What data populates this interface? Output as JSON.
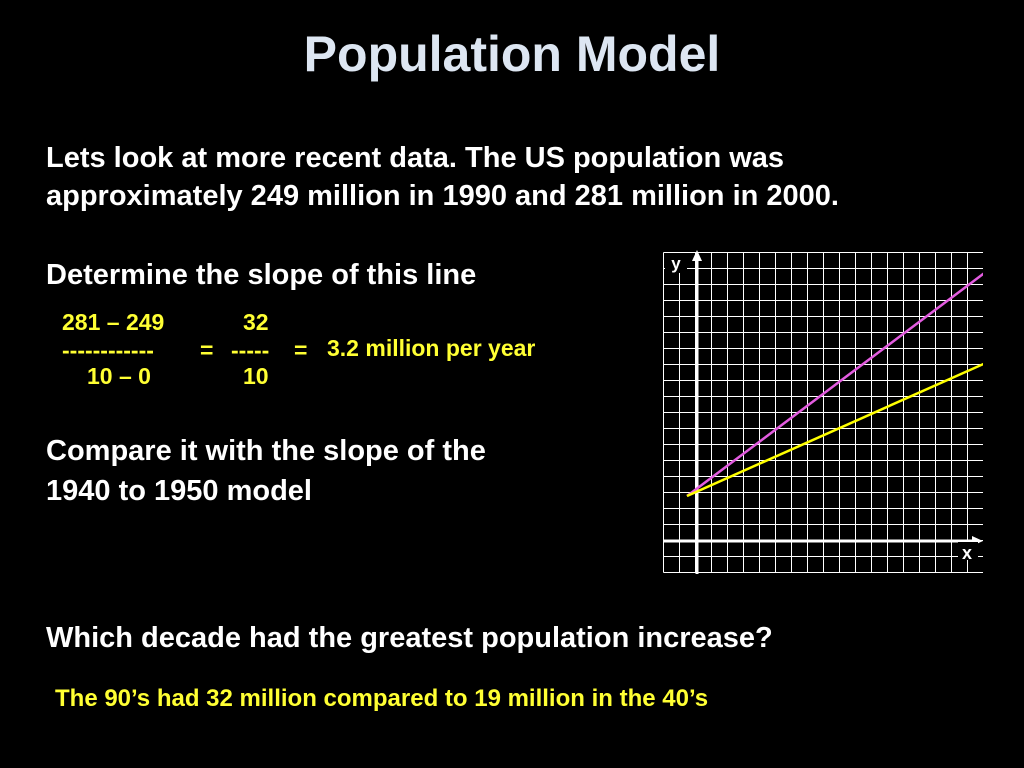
{
  "slide": {
    "title": "Population Model",
    "intro_line1": "Lets look at more recent data.  The US population was",
    "intro_line2": "approximately 249 million in 1990 and 281 million in 2000.",
    "slope_prompt": "Determine the slope of this line",
    "calc": {
      "num_left": "281 – 249",
      "num_right": "32",
      "bar_left": "------------",
      "eq1": "=",
      "bar_right": "-----",
      "eq2": "=",
      "result": "3.2 million per year",
      "den_left": "10 – 0",
      "den_right": "10"
    },
    "compare_line1": "Compare it with the slope of the",
    "compare_line2": "1940 to 1950 model",
    "question": "Which decade had the greatest population increase?",
    "answer": "The 90’s had 32 million compared to 19 million in the 40’s"
  },
  "chart_data": {
    "type": "line",
    "xlabel": "x",
    "ylabel": "y",
    "grid": true,
    "series": [
      {
        "color": "#e35ce0",
        "x": [
          0,
          10
        ],
        "y": [
          249,
          281
        ]
      },
      {
        "color": "#ffff00",
        "x": [
          0,
          10
        ],
        "y": [
          249,
          268
        ]
      }
    ],
    "colors": {
      "background": "#000000",
      "grid": "#ffffff",
      "axis": "#ffffff"
    }
  }
}
